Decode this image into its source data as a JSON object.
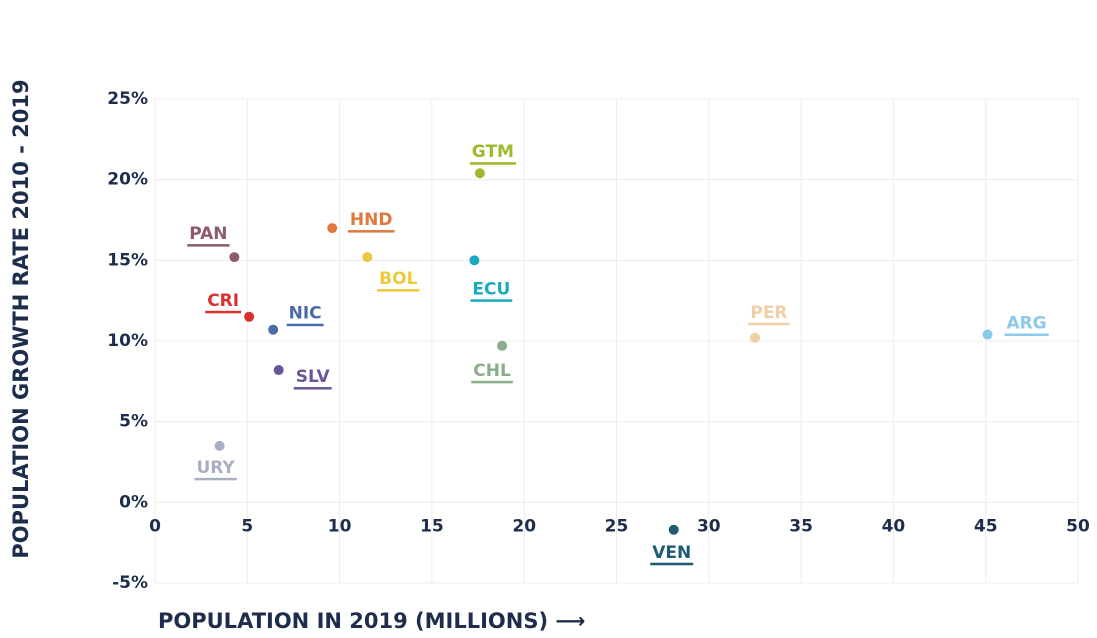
{
  "chart_data": {
    "type": "scatter",
    "ylabel": "POPULATION GROWTH RATE 2010 - 2019",
    "xlabel": "POPULATION IN 2019 (MILLIONS) ⟶",
    "xlim": [
      0,
      50
    ],
    "xticks": [
      0,
      5,
      10,
      15,
      20,
      25,
      30,
      35,
      40,
      45,
      50
    ],
    "ylim": [
      -5,
      25
    ],
    "yticks": [
      {
        "value": -5,
        "label": "-5%"
      },
      {
        "value": 0,
        "label": "0%"
      },
      {
        "value": 5,
        "label": "5%"
      },
      {
        "value": 10,
        "label": "10%"
      },
      {
        "value": 15,
        "label": "15%"
      },
      {
        "value": 20,
        "label": "20%"
      },
      {
        "value": 25,
        "label": "25%"
      }
    ],
    "grid": true,
    "series": [
      {
        "name": "GTM",
        "color": "#9cba2b",
        "x": [
          17.6
        ],
        "values": [
          20.4
        ]
      },
      {
        "name": "HND",
        "color": "#e07a3c",
        "x": [
          9.6
        ],
        "values": [
          17.0
        ]
      },
      {
        "name": "PAN",
        "color": "#8f5a6e",
        "x": [
          4.3
        ],
        "values": [
          15.2
        ]
      },
      {
        "name": "BOL",
        "color": "#ecc93b",
        "x": [
          11.5
        ],
        "values": [
          15.2
        ]
      },
      {
        "name": "ECU",
        "color": "#1aa9bd",
        "x": [
          17.3
        ],
        "values": [
          15.0
        ]
      },
      {
        "name": "CRI",
        "color": "#d8302f",
        "x": [
          5.1
        ],
        "values": [
          11.5
        ]
      },
      {
        "name": "NIC",
        "color": "#4a6ba6",
        "x": [
          6.4
        ],
        "values": [
          10.7
        ]
      },
      {
        "name": "PER",
        "color": "#efcfa6",
        "x": [
          32.5
        ],
        "values": [
          10.2
        ]
      },
      {
        "name": "ARG",
        "color": "#8ccaeb",
        "x": [
          45.1
        ],
        "values": [
          10.4
        ]
      },
      {
        "name": "CHL",
        "color": "#8aad8a",
        "x": [
          18.8
        ],
        "values": [
          9.7
        ]
      },
      {
        "name": "SLV",
        "color": "#6a559c",
        "x": [
          6.7
        ],
        "values": [
          8.2
        ]
      },
      {
        "name": "URY",
        "color": "#a9afc2",
        "x": [
          3.5
        ],
        "values": [
          3.5
        ]
      },
      {
        "name": "VEN",
        "color": "#1e5a78",
        "x": [
          28.1
        ],
        "values": [
          -1.7
        ]
      }
    ]
  }
}
